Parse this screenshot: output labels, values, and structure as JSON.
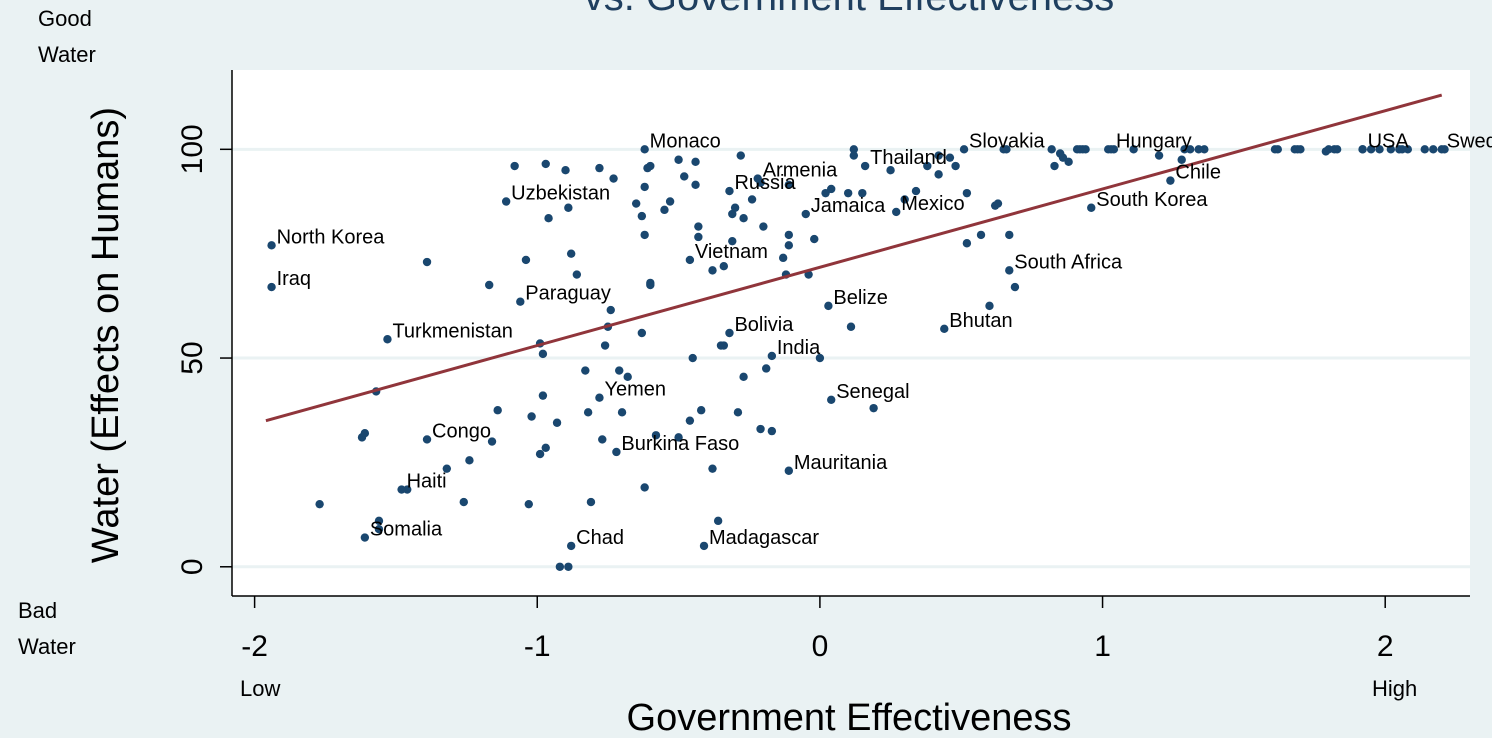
{
  "chart_data": {
    "type": "scatter",
    "title": "vs. Government Effectiveness",
    "xlabel": "Government Effectiveness",
    "ylabel": "Water (Effects on Humans)",
    "x_ticks": [
      -2,
      -1,
      0,
      1,
      2
    ],
    "y_ticks": [
      0,
      50,
      100
    ],
    "xlim": [
      -2.08,
      2.3
    ],
    "ylim": [
      -7,
      119
    ],
    "grid": "horizontal",
    "x_low_label": "Low",
    "x_high_label": "High",
    "y_top_label": [
      "Good",
      "Water"
    ],
    "y_bottom_label": [
      "Bad",
      "Water"
    ],
    "colors": {
      "points": "#1a476f",
      "fit_line": "#90353b",
      "background": "#eaf2f3",
      "plot_area": "#ffffff",
      "grid": "#eaf2f3",
      "title": "#1f3f5f"
    },
    "fit_line": {
      "x": [
        -1.96,
        2.2
      ],
      "y": [
        35,
        113
      ]
    },
    "labeled_points": [
      {
        "label": "North Korea",
        "x": -1.94,
        "y": 77
      },
      {
        "label": "Iraq",
        "x": -1.94,
        "y": 67
      },
      {
        "label": "Turkmenistan",
        "x": -1.53,
        "y": 54.5
      },
      {
        "label": "Congo",
        "x": -1.39,
        "y": 30.5
      },
      {
        "label": "Haiti",
        "x": -1.48,
        "y": 18.5
      },
      {
        "label": "Somalia",
        "x": -1.61,
        "y": 7
      },
      {
        "label": "Chad",
        "x": -0.88,
        "y": 5
      },
      {
        "label": "Madagascar",
        "x": -0.41,
        "y": 5
      },
      {
        "label": "Burkina Faso",
        "x": -0.72,
        "y": 27.5
      },
      {
        "label": "Yemen",
        "x": -0.78,
        "y": 40.5
      },
      {
        "label": "Paraguay",
        "x": -1.06,
        "y": 63.5
      },
      {
        "label": "Uzbekistan",
        "x": -1.11,
        "y": 87.5
      },
      {
        "label": "Monaco",
        "x": -0.62,
        "y": 100
      },
      {
        "label": "Vietnam",
        "x": -0.46,
        "y": 73.5
      },
      {
        "label": "Russia",
        "x": -0.32,
        "y": 90
      },
      {
        "label": "Armenia",
        "x": -0.22,
        "y": 93
      },
      {
        "label": "Jamaica",
        "x": -0.05,
        "y": 84.5
      },
      {
        "label": "Thailand",
        "x": 0.16,
        "y": 96
      },
      {
        "label": "Mexico",
        "x": 0.27,
        "y": 85
      },
      {
        "label": "Bolivia",
        "x": -0.32,
        "y": 56
      },
      {
        "label": "India",
        "x": -0.17,
        "y": 50.5
      },
      {
        "label": "Belize",
        "x": 0.03,
        "y": 62.5
      },
      {
        "label": "Senegal",
        "x": 0.04,
        "y": 40
      },
      {
        "label": "Mauritania",
        "x": -0.11,
        "y": 23
      },
      {
        "label": "Bhutan",
        "x": 0.44,
        "y": 57
      },
      {
        "label": "South Africa",
        "x": 0.67,
        "y": 71
      },
      {
        "label": "Slovakia",
        "x": 0.51,
        "y": 100
      },
      {
        "label": "Hungary",
        "x": 1.03,
        "y": 100
      },
      {
        "label": "Chile",
        "x": 1.24,
        "y": 92.5
      },
      {
        "label": "South Korea",
        "x": 0.96,
        "y": 86
      },
      {
        "label": "USA",
        "x": 1.92,
        "y": 100
      },
      {
        "label": "Sweden",
        "x": 2.2,
        "y": 100
      }
    ],
    "points": [
      [
        -1.77,
        15
      ],
      [
        -1.62,
        31
      ],
      [
        -1.61,
        32
      ],
      [
        -1.57,
        42
      ],
      [
        -1.56,
        11
      ],
      [
        -1.56,
        9
      ],
      [
        -1.46,
        18.5
      ],
      [
        -1.39,
        73
      ],
      [
        -1.32,
        23.5
      ],
      [
        -1.26,
        15.5
      ],
      [
        -1.24,
        25.5
      ],
      [
        -1.17,
        67.5
      ],
      [
        -1.16,
        30
      ],
      [
        -1.14,
        37.5
      ],
      [
        -1.08,
        96
      ],
      [
        -1.04,
        73.5
      ],
      [
        -1.03,
        15
      ],
      [
        -1.02,
        36
      ],
      [
        -0.99,
        53.5
      ],
      [
        -0.99,
        27
      ],
      [
        -0.98,
        51
      ],
      [
        -0.98,
        41
      ],
      [
        -0.97,
        28.5
      ],
      [
        -0.97,
        96.5
      ],
      [
        -0.96,
        83.5
      ],
      [
        -0.93,
        34.5
      ],
      [
        -0.92,
        0
      ],
      [
        -0.9,
        95
      ],
      [
        -0.89,
        86
      ],
      [
        -0.88,
        75
      ],
      [
        -0.89,
        0
      ],
      [
        -0.86,
        70
      ],
      [
        -0.83,
        47
      ],
      [
        -0.82,
        37
      ],
      [
        -0.81,
        15.5
      ],
      [
        -0.78,
        95.5
      ],
      [
        -0.76,
        53
      ],
      [
        -0.77,
        30.5
      ],
      [
        -0.75,
        57.5
      ],
      [
        -0.74,
        61.5
      ],
      [
        -0.73,
        93
      ],
      [
        -0.71,
        47
      ],
      [
        -0.7,
        37
      ],
      [
        -0.68,
        45.5
      ],
      [
        -0.65,
        87
      ],
      [
        -0.63,
        84
      ],
      [
        -0.62,
        91
      ],
      [
        -0.61,
        95.5
      ],
      [
        -0.6,
        96
      ],
      [
        -0.6,
        68
      ],
      [
        -0.6,
        67.5
      ],
      [
        -0.63,
        56
      ],
      [
        -0.62,
        19
      ],
      [
        -0.62,
        79.5
      ],
      [
        -0.58,
        31.5
      ],
      [
        -0.55,
        85.5
      ],
      [
        -0.53,
        87.5
      ],
      [
        -0.5,
        97.5
      ],
      [
        -0.5,
        31
      ],
      [
        -0.48,
        93.5
      ],
      [
        -0.46,
        35
      ],
      [
        -0.45,
        50
      ],
      [
        -0.44,
        97
      ],
      [
        -0.44,
        91.5
      ],
      [
        -0.43,
        81.5
      ],
      [
        -0.43,
        79
      ],
      [
        -0.42,
        37.5
      ],
      [
        -0.38,
        71
      ],
      [
        -0.38,
        23.5
      ],
      [
        -0.36,
        11
      ],
      [
        -0.35,
        53
      ],
      [
        -0.34,
        53
      ],
      [
        -0.34,
        72
      ],
      [
        -0.31,
        78
      ],
      [
        -0.31,
        84.5
      ],
      [
        -0.3,
        86
      ],
      [
        -0.29,
        37
      ],
      [
        -0.28,
        98.5
      ],
      [
        -0.27,
        83.5
      ],
      [
        -0.27,
        45.5
      ],
      [
        -0.24,
        88
      ],
      [
        -0.21,
        33
      ],
      [
        -0.21,
        92
      ],
      [
        -0.2,
        81.5
      ],
      [
        -0.19,
        47.5
      ],
      [
        -0.17,
        32.5
      ],
      [
        -0.13,
        74
      ],
      [
        -0.12,
        70
      ],
      [
        -0.11,
        79.5
      ],
      [
        -0.11,
        77
      ],
      [
        -0.11,
        91.5
      ],
      [
        -0.04,
        70
      ],
      [
        -0.02,
        78.5
      ],
      [
        0.0,
        50
      ],
      [
        0.02,
        89.5
      ],
      [
        0.04,
        90.5
      ],
      [
        0.1,
        89.5
      ],
      [
        0.11,
        57.5
      ],
      [
        0.12,
        98.5
      ],
      [
        0.12,
        100
      ],
      [
        0.15,
        89.5
      ],
      [
        0.19,
        38
      ],
      [
        0.25,
        95
      ],
      [
        0.3,
        88
      ],
      [
        0.34,
        90
      ],
      [
        0.38,
        96
      ],
      [
        0.42,
        94
      ],
      [
        0.42,
        98.5
      ],
      [
        0.46,
        98
      ],
      [
        0.48,
        96
      ],
      [
        0.52,
        77.5
      ],
      [
        0.52,
        89.5
      ],
      [
        0.57,
        79.5
      ],
      [
        0.6,
        62.5
      ],
      [
        0.62,
        86.5
      ],
      [
        0.63,
        87
      ],
      [
        0.65,
        100
      ],
      [
        0.66,
        100
      ],
      [
        0.67,
        79.5
      ],
      [
        0.69,
        67
      ],
      [
        0.82,
        100
      ],
      [
        0.83,
        96
      ],
      [
        0.85,
        99
      ],
      [
        0.86,
        98
      ],
      [
        0.88,
        97
      ],
      [
        0.91,
        100
      ],
      [
        0.92,
        100
      ],
      [
        0.93,
        100
      ],
      [
        0.94,
        100
      ],
      [
        1.02,
        100
      ],
      [
        1.04,
        100
      ],
      [
        1.11,
        100
      ],
      [
        1.2,
        98.5
      ],
      [
        1.28,
        97.5
      ],
      [
        1.29,
        100
      ],
      [
        1.31,
        100
      ],
      [
        1.34,
        100
      ],
      [
        1.36,
        100
      ],
      [
        1.61,
        100
      ],
      [
        1.62,
        100
      ],
      [
        1.68,
        100
      ],
      [
        1.69,
        100
      ],
      [
        1.7,
        100
      ],
      [
        1.79,
        99.5
      ],
      [
        1.8,
        100
      ],
      [
        1.82,
        100
      ],
      [
        1.83,
        100
      ],
      [
        1.92,
        100
      ],
      [
        1.95,
        100
      ],
      [
        1.98,
        100
      ],
      [
        2.02,
        100
      ],
      [
        2.05,
        100
      ],
      [
        2.06,
        100
      ],
      [
        2.08,
        100
      ],
      [
        2.14,
        100
      ],
      [
        2.17,
        100
      ],
      [
        2.21,
        100
      ]
    ]
  }
}
